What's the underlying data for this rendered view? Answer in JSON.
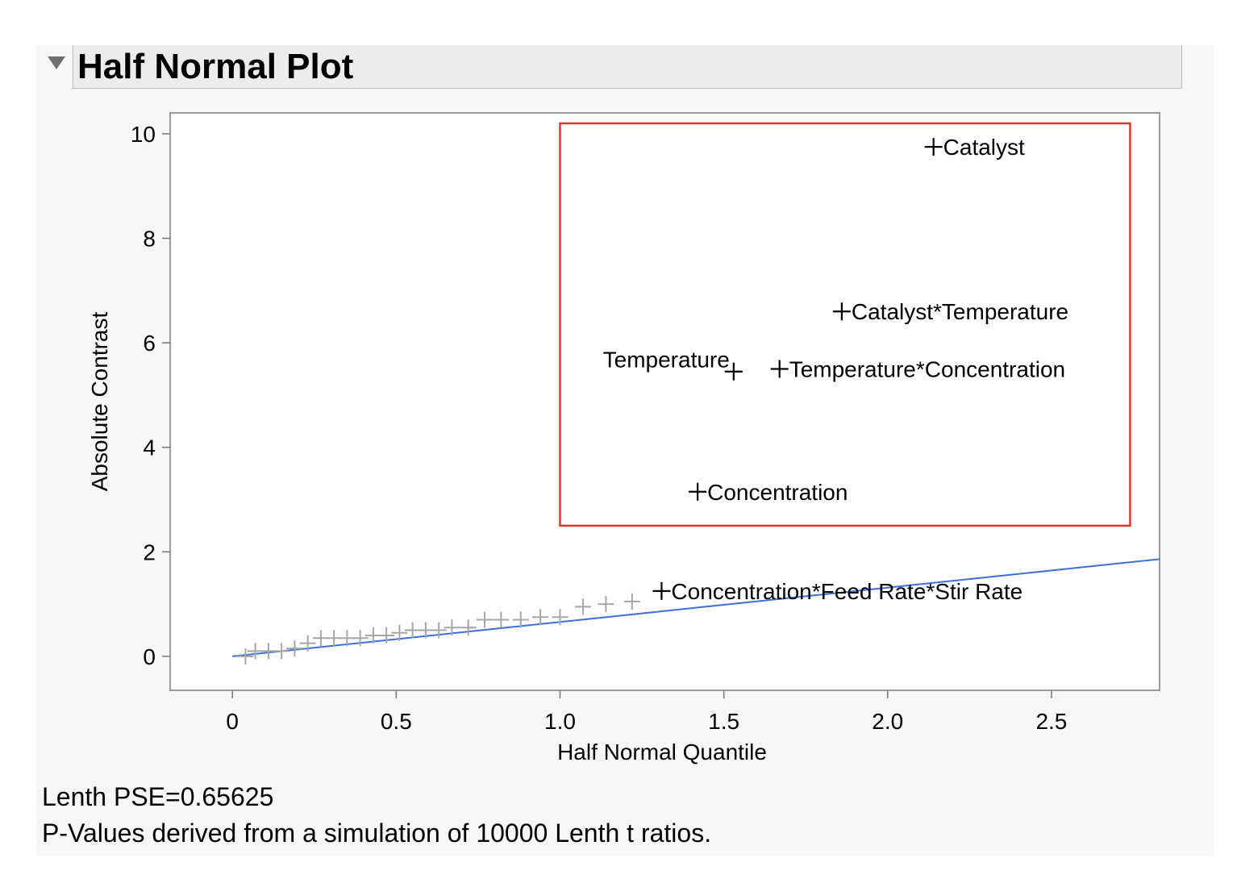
{
  "report": {
    "title": "Half Normal Plot",
    "footer_pse": "Lenth PSE=0.65625",
    "footer_pvalues": "P-Values derived from a simulation of 10000 Lenth t ratios."
  },
  "colors": {
    "fit_line": "#3b6fe0",
    "highlight_box": "#e0392b",
    "minor_points": "#a6a6a6",
    "labeled_points": "#000000"
  },
  "chart_data": {
    "type": "scatter",
    "title": "Half Normal Plot",
    "xlabel": "Half Normal Quantile",
    "ylabel": "Absolute Contrast",
    "xlim": [
      -0.19,
      2.83
    ],
    "ylim": [
      -0.65,
      10.4
    ],
    "xticks": [
      0,
      0.5,
      1.0,
      1.5,
      2.0,
      2.5
    ],
    "xtick_labels": [
      "0",
      "0.5",
      "1.0",
      "1.5",
      "2.0",
      "2.5"
    ],
    "yticks": [
      0,
      2,
      4,
      6,
      8,
      10
    ],
    "ytick_labels": [
      "0",
      "2",
      "4",
      "6",
      "8",
      "10"
    ],
    "grid": false,
    "fit_line": {
      "x": [
        0,
        2.83
      ],
      "y": [
        0,
        1.86
      ]
    },
    "highlight_region": {
      "x": [
        1.0,
        2.74
      ],
      "y": [
        2.5,
        10.2
      ]
    },
    "labeled_points": [
      {
        "name": "Catalyst",
        "x": 2.14,
        "y": 9.75
      },
      {
        "name": "Catalyst*Temperature",
        "x": 1.86,
        "y": 6.6
      },
      {
        "name": "Temperature",
        "x": 1.53,
        "y": 5.45
      },
      {
        "name": "Temperature*Concentration",
        "x": 1.67,
        "y": 5.5
      },
      {
        "name": "Concentration",
        "x": 1.42,
        "y": 3.15
      },
      {
        "name": "Concentration*Feed Rate*Stir Rate",
        "x": 1.31,
        "y": 1.25
      }
    ],
    "unlabeled_points": [
      {
        "x": 0.04,
        "y": 0.0
      },
      {
        "x": 0.07,
        "y": 0.1
      },
      {
        "x": 0.11,
        "y": 0.1
      },
      {
        "x": 0.15,
        "y": 0.1
      },
      {
        "x": 0.19,
        "y": 0.15
      },
      {
        "x": 0.23,
        "y": 0.25
      },
      {
        "x": 0.27,
        "y": 0.35
      },
      {
        "x": 0.31,
        "y": 0.35
      },
      {
        "x": 0.35,
        "y": 0.35
      },
      {
        "x": 0.39,
        "y": 0.35
      },
      {
        "x": 0.43,
        "y": 0.4
      },
      {
        "x": 0.47,
        "y": 0.4
      },
      {
        "x": 0.51,
        "y": 0.45
      },
      {
        "x": 0.55,
        "y": 0.5
      },
      {
        "x": 0.59,
        "y": 0.5
      },
      {
        "x": 0.63,
        "y": 0.5
      },
      {
        "x": 0.67,
        "y": 0.55
      },
      {
        "x": 0.72,
        "y": 0.55
      },
      {
        "x": 0.77,
        "y": 0.7
      },
      {
        "x": 0.82,
        "y": 0.7
      },
      {
        "x": 0.88,
        "y": 0.7
      },
      {
        "x": 0.94,
        "y": 0.75
      },
      {
        "x": 1.0,
        "y": 0.75
      },
      {
        "x": 1.07,
        "y": 0.95
      },
      {
        "x": 1.14,
        "y": 1.0
      },
      {
        "x": 1.22,
        "y": 1.05
      }
    ]
  }
}
